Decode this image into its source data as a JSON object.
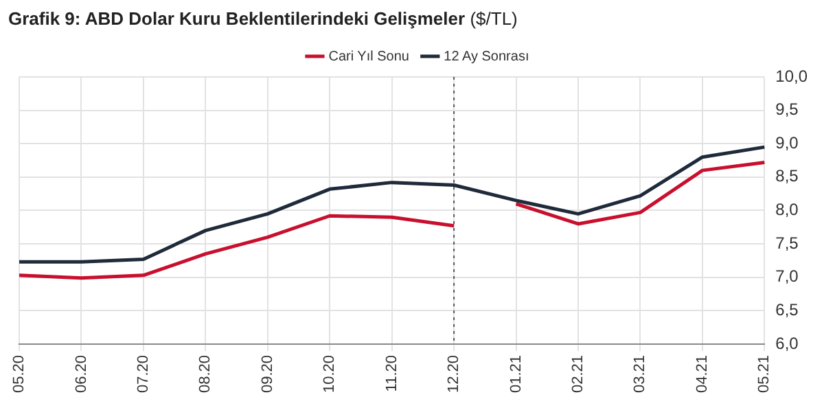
{
  "chart_data": {
    "type": "line",
    "title": "Grafik 9: ABD Dolar Kuru Beklentilerindeki Gelişmeler",
    "subtitle": "($/TL)",
    "categories": [
      "05.20",
      "06.20",
      "07.20",
      "08.20",
      "09.20",
      "10.20",
      "11.20",
      "12.20",
      "01.21",
      "02.21",
      "03.21",
      "04.21",
      "05.21"
    ],
    "series": [
      {
        "name": "Cari Yıl Sonu",
        "color": "#c8102e",
        "values": [
          7.03,
          6.99,
          7.03,
          7.35,
          7.6,
          7.92,
          7.9,
          7.77,
          null,
          null,
          null,
          null,
          null
        ]
      },
      {
        "name": "12 Ay Sonrası",
        "color": "#1f2a3a",
        "values": [
          7.23,
          7.23,
          7.27,
          7.7,
          7.95,
          8.32,
          8.42,
          8.38,
          8.15,
          7.95,
          8.22,
          8.8,
          8.95
        ]
      },
      {
        "color": "#c8102e",
        "values": [
          null,
          null,
          null,
          null,
          null,
          null,
          null,
          null,
          8.1,
          7.8,
          7.97,
          8.6,
          8.72
        ]
      }
    ],
    "ylim": [
      6,
      10
    ],
    "yticks": [
      {
        "value": 6,
        "label": "6,0"
      },
      {
        "value": 6.5,
        "label": "6,5"
      },
      {
        "value": 7,
        "label": "7,0"
      },
      {
        "value": 7.5,
        "label": "7,5"
      },
      {
        "value": 8,
        "label": "8,0"
      },
      {
        "value": 8.5,
        "label": "8,5"
      },
      {
        "value": 9,
        "label": "9,0"
      },
      {
        "value": 9.5,
        "label": "9,5"
      },
      {
        "value": 10,
        "label": "10,0"
      }
    ],
    "grid": true,
    "legend": "top",
    "marker": "none",
    "line_style": "solid",
    "ref_lines": [
      {
        "axis": "x",
        "value": "12.20",
        "color": "#555555",
        "line_style": "dotted"
      }
    ]
  }
}
